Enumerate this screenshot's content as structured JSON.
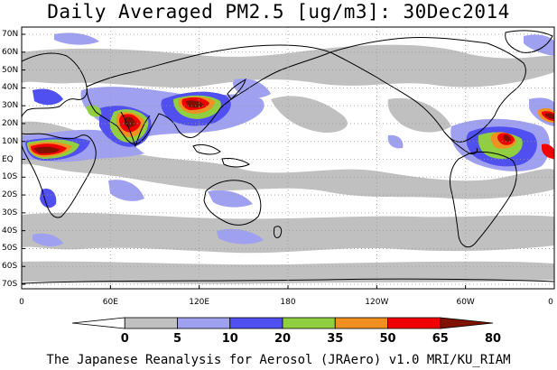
{
  "title": "Daily Averaged PM2.5 [ug/m3]: 30Dec2014",
  "footer": "The Japanese Reanalysis for Aerosol (JRAero) v1.0 MRI/KU_RIAM",
  "lat_labels": [
    "70N",
    "60N",
    "50N",
    "40N",
    "30N",
    "20N",
    "10N",
    "EQ",
    "10S",
    "20S",
    "30S",
    "40S",
    "50S",
    "60S",
    "70S"
  ],
  "lon_labels": [
    "0",
    "60E",
    "120E",
    "180",
    "120W",
    "60W",
    "0"
  ],
  "colorbar": {
    "labels": [
      "0",
      "5",
      "10",
      "20",
      "35",
      "50",
      "65",
      "80"
    ],
    "colors": [
      "#ffffff",
      "#c0c0c0",
      "#a0a0f0",
      "#5050f0",
      "#90d040",
      "#f09020",
      "#f00000",
      "#801000"
    ]
  },
  "colors": {
    "coast": "#000000",
    "grid": "#9a9a9a"
  }
}
